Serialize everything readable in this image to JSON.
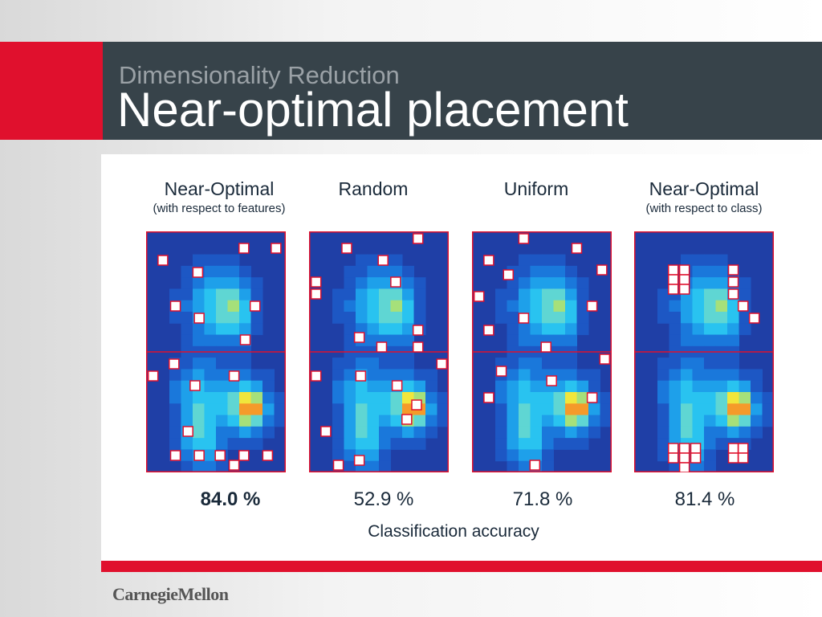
{
  "header": {
    "subtitle": "Dimensionality Reduction",
    "title": "Near-optimal placement"
  },
  "logo": "CarnegieMellon",
  "caption": "Classification accuracy",
  "colors": {
    "red": "#e0102d",
    "header_bg": "#37434a",
    "map_bg": "#1f3fa6",
    "marker": "#e0102d"
  },
  "columns": [
    {
      "title": "Near-Optimal",
      "subtitle": "(with respect to features)",
      "accuracy": "84.0 %",
      "bold": true
    },
    {
      "title": "Random",
      "subtitle": "",
      "accuracy": "52.9 %",
      "bold": false
    },
    {
      "title": "Uniform",
      "subtitle": "",
      "accuracy": "71.8 %",
      "bold": false
    },
    {
      "title": "Near-Optimal",
      "subtitle": "(with respect to class)",
      "accuracy": "81.4 %",
      "bold": false
    }
  ]
}
